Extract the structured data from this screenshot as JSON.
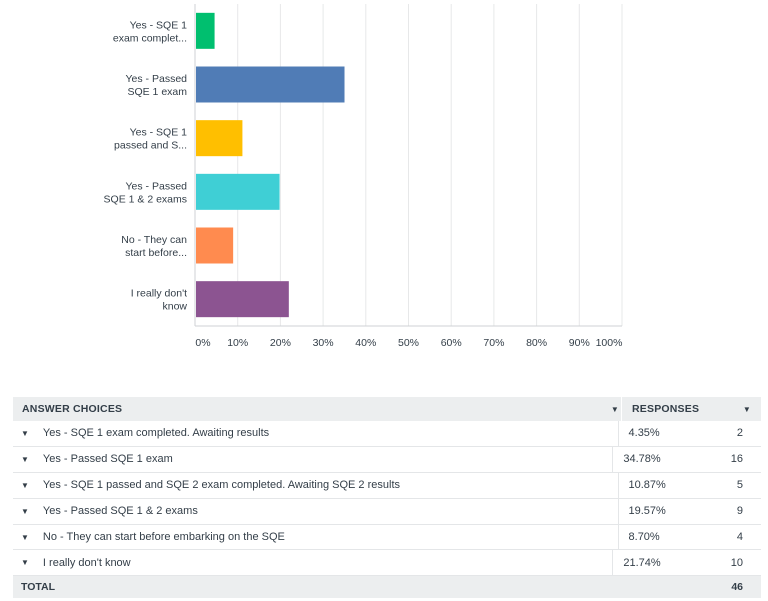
{
  "chart_data": {
    "type": "bar",
    "orientation": "horizontal",
    "categories": [
      [
        "Yes - SQE 1",
        "exam complet..."
      ],
      [
        "Yes - Passed",
        "SQE 1 exam"
      ],
      [
        "Yes - SQE 1",
        "passed and S..."
      ],
      [
        "Yes - Passed",
        "SQE 1 & 2 exams"
      ],
      [
        "No - They can",
        "start before..."
      ],
      [
        "I really don't",
        "know"
      ]
    ],
    "values": [
      4.35,
      34.78,
      10.87,
      19.57,
      8.7,
      21.74
    ],
    "colors": [
      "#00bf6f",
      "#507cb6",
      "#ffbf00",
      "#3fcfd5",
      "#ff8b4f",
      "#8c5491"
    ],
    "xlim": [
      0,
      100
    ],
    "xticks": [
      "0%",
      "10%",
      "20%",
      "30%",
      "40%",
      "50%",
      "60%",
      "70%",
      "80%",
      "90%",
      "100%"
    ],
    "grid": true,
    "title": "",
    "xlabel": "",
    "ylabel": ""
  },
  "table": {
    "header_choices": "ANSWER CHOICES",
    "header_responses": "RESPONSES",
    "rows": [
      {
        "choice": "Yes - SQE 1 exam completed. Awaiting results",
        "percent": "4.35%",
        "count": "2"
      },
      {
        "choice": "Yes - Passed SQE 1 exam",
        "percent": "34.78%",
        "count": "16"
      },
      {
        "choice": "Yes - SQE 1 passed and SQE 2 exam completed. Awaiting SQE 2 results",
        "percent": "10.87%",
        "count": "5"
      },
      {
        "choice": "Yes - Passed SQE 1 & 2 exams",
        "percent": "19.57%",
        "count": "9"
      },
      {
        "choice": "No - They can start before embarking on the SQE",
        "percent": "8.70%",
        "count": "4"
      },
      {
        "choice": "I really don't know",
        "percent": "21.74%",
        "count": "10"
      }
    ],
    "total_label": "TOTAL",
    "total_value": "46"
  },
  "icons": {
    "sort_caret": "caret-down-icon",
    "row_caret": "caret-down-icon"
  }
}
